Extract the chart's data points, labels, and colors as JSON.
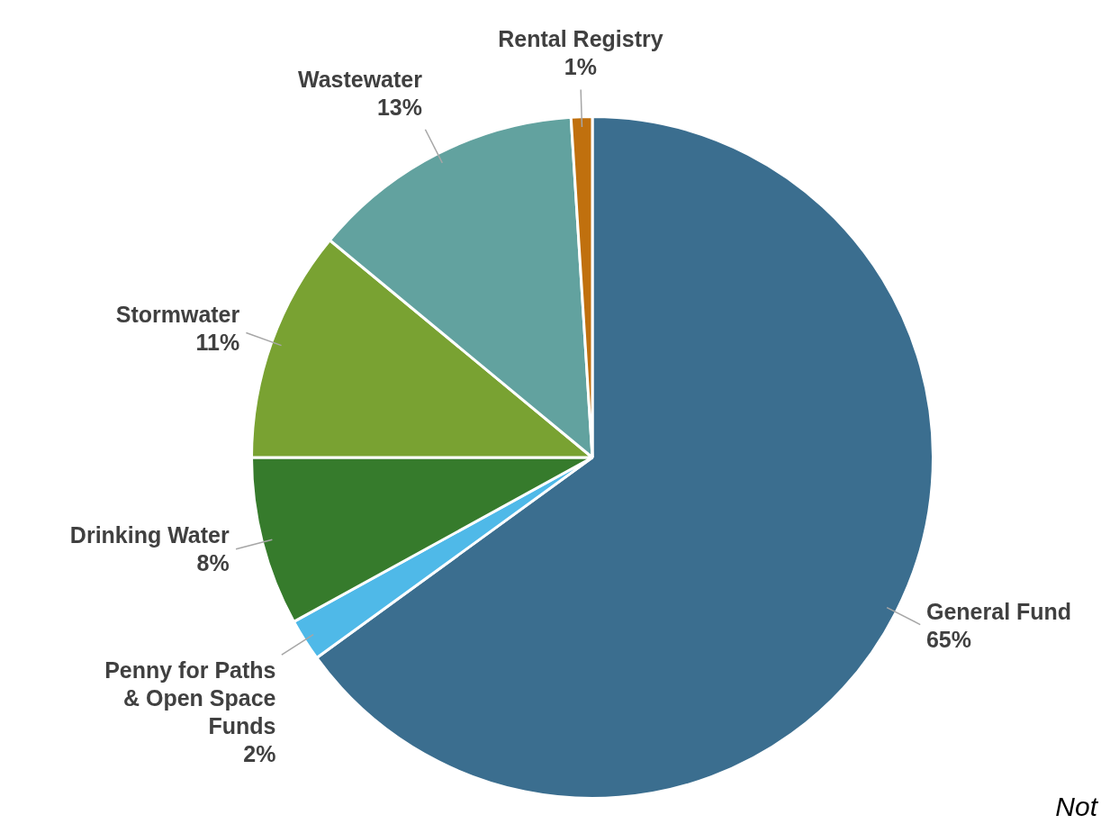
{
  "chart_data": {
    "type": "pie",
    "categories": [
      "General Fund",
      "Penny for Paths\n& Open Space\nFunds",
      "Drinking Water",
      "Stormwater",
      "Wastewater",
      "Rental Registry"
    ],
    "values": [
      65,
      2,
      8,
      11,
      13,
      1
    ],
    "colors": [
      "#3b6e8f",
      "#4fb9e8",
      "#367b2c",
      "#79a232",
      "#62a29f",
      "#c0700e"
    ],
    "value_labels": [
      "65%",
      "2%",
      "8%",
      "11%",
      "13%",
      "1%"
    ],
    "legend": false,
    "annotations": [
      "Not"
    ]
  }
}
